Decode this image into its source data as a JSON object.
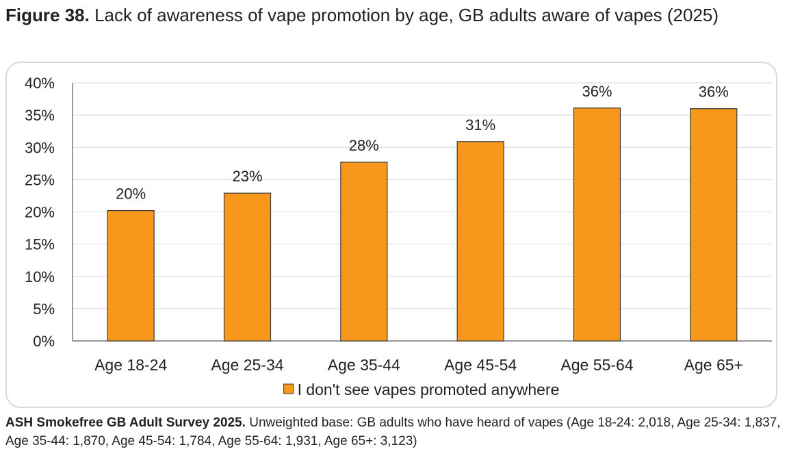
{
  "figure": {
    "label": "Figure 38.",
    "title": "Lack of awareness of vape promotion by age, GB adults aware of vapes (2025)"
  },
  "chart_data": {
    "type": "bar",
    "categories": [
      "Age 18-24",
      "Age 25-34",
      "Age 35-44",
      "Age 45-54",
      "Age 55-64",
      "Age 65+"
    ],
    "series": [
      {
        "name": "I don't see vapes promoted anywhere",
        "values": [
          20.2,
          22.9,
          27.7,
          30.9,
          36.1,
          36.0
        ],
        "labels": [
          "20%",
          "23%",
          "28%",
          "31%",
          "36%",
          "36%"
        ],
        "color": "#f7981d"
      }
    ],
    "ylim": [
      0,
      40
    ],
    "yticks": [
      0,
      5,
      10,
      15,
      20,
      25,
      30,
      35,
      40
    ],
    "ytick_labels": [
      "0%",
      "5%",
      "10%",
      "15%",
      "20%",
      "25%",
      "30%",
      "35%",
      "40%"
    ],
    "grid": true,
    "legend_position": "bottom",
    "xlabel": "",
    "ylabel": ""
  },
  "source": {
    "bold": "ASH Smokefree GB Adult Survey 2025.",
    "text": " Unweighted base: GB adults who have heard of vapes (Age 18-24: 2,018, Age 25-34: 1,837, Age 35-44: 1,870, Age 45-54: 1,784, Age 55-64: 1,931, Age 65+: 3,123)"
  }
}
